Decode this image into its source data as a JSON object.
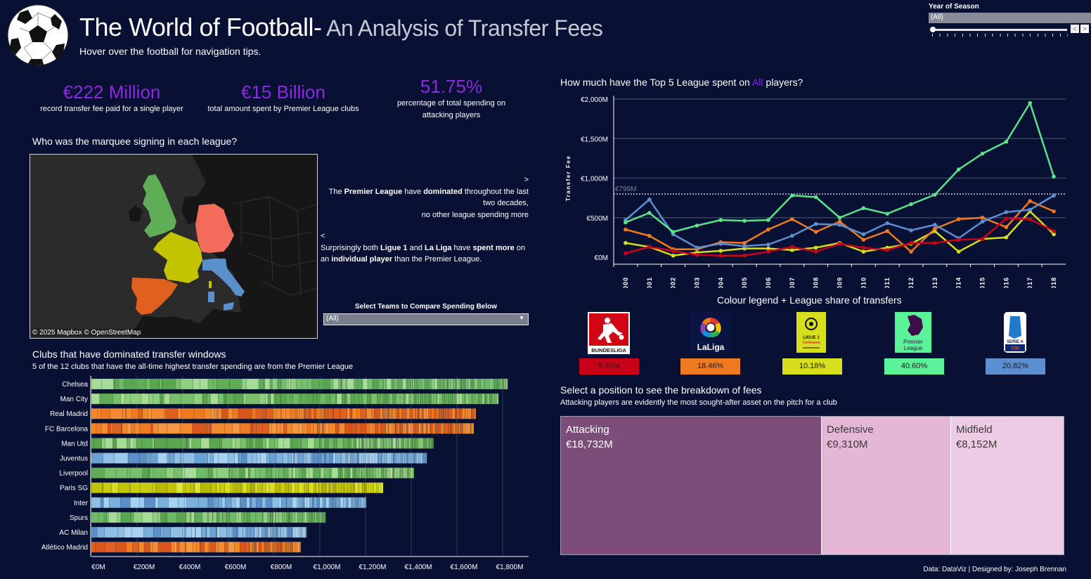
{
  "header": {
    "title_main": "The World of Football-",
    "title_sub": " An Analysis of Transfer Fees",
    "subtitle": "Hover over the football for navigation tips.",
    "logo_icon": "football-icon"
  },
  "year_filter": {
    "label": "Year of Season",
    "selected": "(All)",
    "prev_icon": "<",
    "next_icon": ">"
  },
  "kpis": [
    {
      "value": "€222 Million",
      "desc": "record transfer fee paid for a single player"
    },
    {
      "value": "€15 Billion",
      "desc": "total amount spent by Premier League clubs"
    },
    {
      "value": "51.75%",
      "desc": "percentage of total spending on attacking players"
    }
  ],
  "map_section": {
    "title": "Who was the marquee signing in each league?",
    "attribution": "© 2025 Mapbox  © OpenStreetMap",
    "countries": [
      {
        "name": "England",
        "league": "Premier League",
        "color": "#5fad56"
      },
      {
        "name": "Germany",
        "league": "Bundesliga",
        "color": "#f26b5b"
      },
      {
        "name": "France",
        "league": "Ligue 1",
        "color": "#c3c300"
      },
      {
        "name": "Spain",
        "league": "La Liga",
        "color": "#e0601f"
      },
      {
        "name": "Italy",
        "league": "Serie A",
        "color": "#5b8fc9"
      }
    ]
  },
  "notes": {
    "arrow_next": ">",
    "note1_parts": [
      "The ",
      "Premier League",
      " have ",
      "dominated",
      " throughout the last two decades,"
    ],
    "note1_line3": "no other league spending more",
    "arrow_prev": "<",
    "note2_parts": [
      "Surprisingly both ",
      "Ligue 1",
      " and ",
      "La Liga",
      " have ",
      "spent more",
      " on an ",
      "individual player",
      " than the Premier League."
    ]
  },
  "team_filter": {
    "label": "Select Teams to Compare Spending Below",
    "selected": "(All)"
  },
  "bar_section": {
    "title": "Clubs that have dominated transfer windows",
    "subtitle": "5 of the 12 clubs that have the all-time highest transfer spending are from the Premier League"
  },
  "line_section": {
    "title_pre": "How much have the Top 5 League spent on ",
    "title_highlight": "All",
    "title_post": " players?"
  },
  "legend": {
    "title": "Colour legend + League share of transfers",
    "leagues": [
      {
        "name": "Bundesliga",
        "logo_text": "BUNDESLIGA",
        "share": "9.95%",
        "color": "#c8001a"
      },
      {
        "name": "La Liga",
        "logo_text": "LaLiga",
        "share": "18.46%",
        "color": "#f07a1f"
      },
      {
        "name": "Ligue 1",
        "logo_text": "LIGUE 1",
        "logo_sub": "Conforama",
        "share": "10.18%",
        "color": "#d6de1e"
      },
      {
        "name": "Premier League",
        "logo_text": "Premier League",
        "share": "40.60%",
        "color": "#5cf29a"
      },
      {
        "name": "Serie A",
        "logo_text": "SERIE A",
        "logo_sub": "TIM",
        "share": "20.82%",
        "color": "#5b8fd0"
      }
    ]
  },
  "position_section": {
    "title": "Select a position to see the breakdown of fees",
    "subtitle": "Attacking players are evidently the most sought-after asset on the pitch for a club"
  },
  "footer": "Data: DataViz | Designed by: Joseph Brennan",
  "chart_data": [
    {
      "id": "league-spend-line",
      "type": "line",
      "title": "How much have the Top 5 League spent on All players?",
      "xlabel": "",
      "ylabel": "Transfer Fee",
      "x": [
        "2000",
        "2001",
        "2002",
        "2003",
        "2004",
        "2005",
        "2006",
        "2007",
        "2008",
        "2009",
        "2010",
        "2011",
        "2012",
        "2013",
        "2014",
        "2015",
        "2016",
        "2017",
        "2018"
      ],
      "yticks": [
        "€0M",
        "€500M",
        "€1,000M",
        "€1,500M",
        "€2,000M"
      ],
      "ylim": [
        0,
        2000
      ],
      "grid": true,
      "reference_line": {
        "value": 799,
        "label": "€799M"
      },
      "series": [
        {
          "name": "Premier League",
          "color": "#5ce28a",
          "values": [
            440,
            560,
            320,
            400,
            470,
            460,
            470,
            780,
            760,
            500,
            620,
            550,
            670,
            790,
            1110,
            1310,
            1460,
            1950,
            1020
          ]
        },
        {
          "name": "Serie A",
          "color": "#5b8fd0",
          "values": [
            470,
            730,
            290,
            120,
            170,
            140,
            160,
            270,
            420,
            410,
            290,
            430,
            340,
            410,
            240,
            450,
            570,
            600,
            780
          ]
        },
        {
          "name": "La Liga",
          "color": "#f07a1f",
          "values": [
            350,
            270,
            100,
            100,
            190,
            180,
            350,
            480,
            320,
            450,
            220,
            330,
            70,
            360,
            480,
            500,
            380,
            710,
            580
          ]
        },
        {
          "name": "Ligue 1",
          "color": "#d6de1e",
          "values": [
            180,
            130,
            20,
            60,
            80,
            110,
            110,
            90,
            120,
            180,
            70,
            120,
            170,
            330,
            70,
            230,
            250,
            580,
            290
          ]
        },
        {
          "name": "Bundesliga",
          "color": "#c8001a",
          "values": [
            50,
            130,
            80,
            30,
            20,
            20,
            70,
            130,
            70,
            170,
            120,
            90,
            180,
            180,
            220,
            230,
            490,
            480,
            330
          ]
        }
      ]
    },
    {
      "id": "club-spend-bar",
      "type": "bar",
      "orientation": "horizontal",
      "title": "Clubs that have dominated transfer windows",
      "xlabel": "",
      "ylabel": "",
      "categories": [
        "Chelsea",
        "Man City",
        "Real Madrid",
        "FC Barcelona",
        "Man Utd",
        "Juventus",
        "Liverpool",
        "Paris SG",
        "Inter",
        "Spurs",
        "AC Milan",
        "Atlético Madrid"
      ],
      "values": [
        1822,
        1782,
        1683,
        1674,
        1498,
        1468,
        1412,
        1277,
        1203,
        1025,
        942,
        917
      ],
      "leagues": [
        "Premier League",
        "Premier League",
        "La Liga",
        "La Liga",
        "Premier League",
        "Serie A",
        "Premier League",
        "Ligue 1",
        "Serie A",
        "Premier League",
        "Serie A",
        "La Liga"
      ],
      "xticks": [
        "€0M",
        "€200M",
        "€400M",
        "€600M",
        "€800M",
        "€1,000M",
        "€1,200M",
        "€1,400M",
        "€1,600M",
        "€1,800M"
      ],
      "xlim": [
        0,
        1800
      ],
      "grid": true
    },
    {
      "id": "position-treemap",
      "type": "treemap",
      "title": "Select a position to see the breakdown of fees",
      "categories": [
        "Attacking",
        "Defensive",
        "Midfield"
      ],
      "values": [
        18732,
        9310,
        8152
      ],
      "labels": [
        "€18,732M",
        "€9,310M",
        "€8,152M"
      ],
      "colors": [
        "#7b4d78",
        "#e5b7d6",
        "#eecbe4"
      ]
    }
  ]
}
